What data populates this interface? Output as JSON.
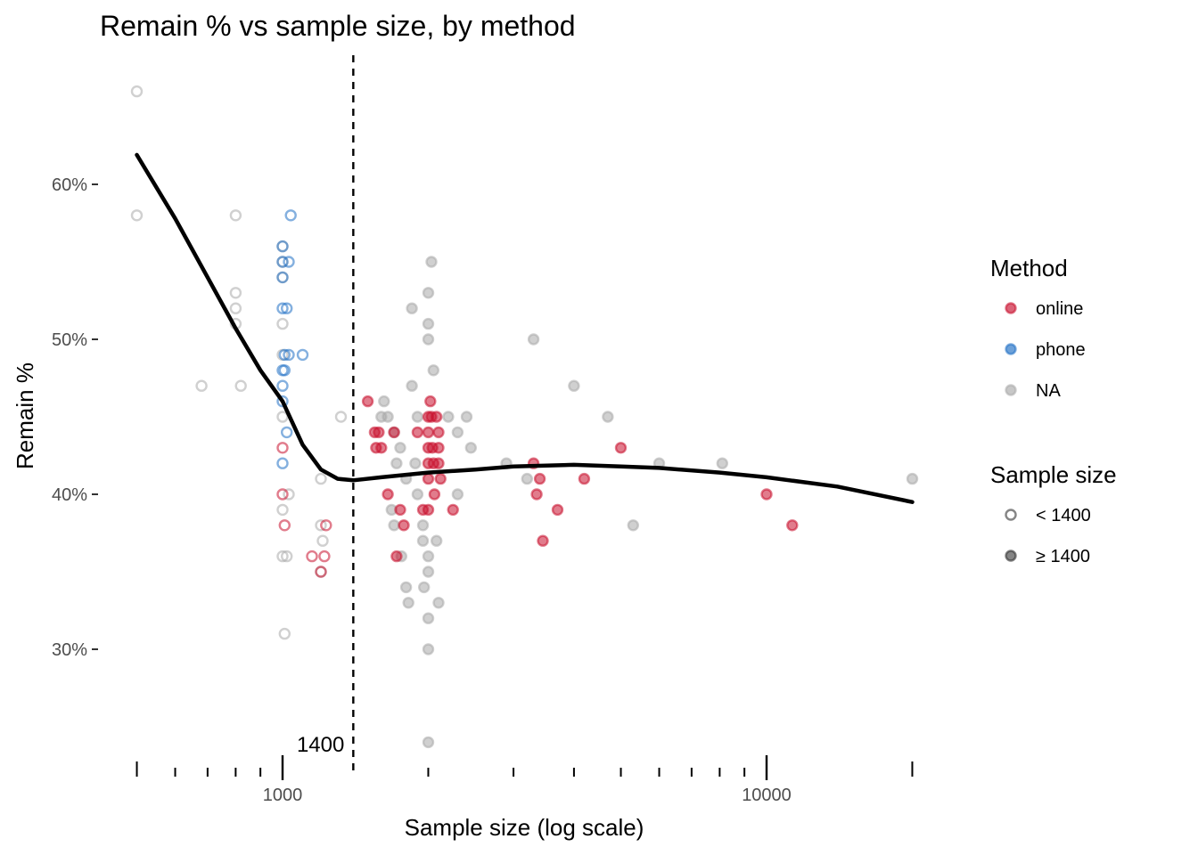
{
  "chart_data": {
    "type": "scatter",
    "title": "Remain % vs sample size, by method",
    "xlabel": "Sample size (log scale)",
    "ylabel": "Remain %",
    "x_scale": "log10",
    "xlim": [
      500,
      20000
    ],
    "ylim": [
      24,
      66
    ],
    "x_ticks_labeled": [
      {
        "value": 1000,
        "label": "1000"
      },
      {
        "value": 10000,
        "label": "10000"
      }
    ],
    "x_ticks_minor": [
      500,
      600,
      700,
      800,
      900,
      2000,
      3000,
      4000,
      5000,
      6000,
      7000,
      8000,
      9000,
      20000
    ],
    "y_ticks": [
      {
        "value": 30,
        "label": "30%"
      },
      {
        "value": 40,
        "label": "40%"
      },
      {
        "value": 50,
        "label": "50%"
      },
      {
        "value": 60,
        "label": "60%"
      }
    ],
    "grid": false,
    "colors": {
      "online": "#c8102e",
      "phone": "#1f6fc5",
      "NA": "#a9a9a9",
      "smooth": "#000000"
    },
    "reference_line": {
      "x": 1400,
      "style": "dashed",
      "label": "1400"
    },
    "smooth_curve": [
      [
        500,
        61.9
      ],
      [
        600,
        57.8
      ],
      [
        700,
        54.0
      ],
      [
        800,
        50.7
      ],
      [
        900,
        48.0
      ],
      [
        1000,
        46.0
      ],
      [
        1100,
        43.2
      ],
      [
        1200,
        41.6
      ],
      [
        1300,
        41.0
      ],
      [
        1400,
        40.9
      ],
      [
        1600,
        41.1
      ],
      [
        2000,
        41.4
      ],
      [
        2500,
        41.6
      ],
      [
        3000,
        41.8
      ],
      [
        4000,
        41.9
      ],
      [
        5000,
        41.8
      ],
      [
        6000,
        41.7
      ],
      [
        8000,
        41.4
      ],
      [
        10000,
        41.1
      ],
      [
        14000,
        40.5
      ],
      [
        20000,
        39.5
      ]
    ],
    "legend": {
      "placement": "right",
      "method": {
        "title": "Method",
        "items": [
          "online",
          "phone",
          "NA"
        ]
      },
      "size": {
        "title": "Sample size",
        "items": [
          "< 1400",
          "≥ 1400"
        ]
      }
    },
    "series": [
      {
        "name": "online",
        "points": [
          [
            1000,
            43
          ],
          [
            1000,
            40
          ],
          [
            1010,
            38
          ],
          [
            1150,
            36
          ],
          [
            1200,
            35
          ],
          [
            1220,
            36
          ],
          [
            1230,
            38
          ],
          [
            1500,
            46
          ],
          [
            1550,
            44
          ],
          [
            1560,
            43
          ],
          [
            1580,
            44
          ],
          [
            1600,
            43
          ],
          [
            1650,
            40
          ],
          [
            1700,
            44
          ],
          [
            1720,
            36
          ],
          [
            1750,
            39
          ],
          [
            1780,
            38
          ],
          [
            1900,
            44
          ],
          [
            1950,
            39
          ],
          [
            2000,
            45
          ],
          [
            2000,
            44
          ],
          [
            2000,
            43
          ],
          [
            2000,
            42
          ],
          [
            2000,
            41
          ],
          [
            2000,
            39
          ],
          [
            2020,
            46
          ],
          [
            2030,
            45
          ],
          [
            2040,
            43
          ],
          [
            2050,
            42
          ],
          [
            2060,
            40
          ],
          [
            2080,
            45
          ],
          [
            2100,
            44
          ],
          [
            2100,
            43
          ],
          [
            2100,
            42
          ],
          [
            2120,
            41
          ],
          [
            2250,
            39
          ],
          [
            3300,
            42
          ],
          [
            3400,
            41
          ],
          [
            3350,
            40
          ],
          [
            3450,
            37
          ],
          [
            3700,
            39
          ],
          [
            4200,
            41
          ],
          [
            5000,
            43
          ],
          [
            10000,
            40
          ],
          [
            11300,
            38
          ]
        ]
      },
      {
        "name": "phone",
        "points": [
          [
            1000,
            56
          ],
          [
            1000,
            55
          ],
          [
            1000,
            54
          ],
          [
            1000,
            52
          ],
          [
            1000,
            48
          ],
          [
            1000,
            47
          ],
          [
            1000,
            46
          ],
          [
            1000,
            42
          ],
          [
            1010,
            49
          ],
          [
            1010,
            48
          ],
          [
            1020,
            44
          ],
          [
            1020,
            52
          ],
          [
            1030,
            55
          ],
          [
            1030,
            49
          ],
          [
            1040,
            58
          ],
          [
            1100,
            49
          ]
        ]
      },
      {
        "name": "NA",
        "points": [
          [
            500,
            66
          ],
          [
            500,
            58
          ],
          [
            680,
            47
          ],
          [
            800,
            58
          ],
          [
            800,
            53
          ],
          [
            800,
            52
          ],
          [
            800,
            51
          ],
          [
            820,
            47
          ],
          [
            1000,
            56
          ],
          [
            1000,
            55
          ],
          [
            1000,
            54
          ],
          [
            1000,
            51
          ],
          [
            1000,
            49
          ],
          [
            1000,
            45
          ],
          [
            1000,
            39
          ],
          [
            1000,
            36
          ],
          [
            1010,
            31
          ],
          [
            1020,
            36
          ],
          [
            1030,
            40
          ],
          [
            1200,
            41
          ],
          [
            1200,
            38
          ],
          [
            1210,
            37
          ],
          [
            1200,
            35
          ],
          [
            1320,
            45
          ],
          [
            1620,
            46
          ],
          [
            1650,
            45
          ],
          [
            1700,
            44
          ],
          [
            1720,
            42
          ],
          [
            1750,
            43
          ],
          [
            1800,
            41
          ],
          [
            1600,
            45
          ],
          [
            1680,
            39
          ],
          [
            1700,
            38
          ],
          [
            1760,
            36
          ],
          [
            1800,
            34
          ],
          [
            1820,
            33
          ],
          [
            1850,
            47
          ],
          [
            1850,
            52
          ],
          [
            1880,
            42
          ],
          [
            1900,
            45
          ],
          [
            1900,
            40
          ],
          [
            1950,
            38
          ],
          [
            1950,
            37
          ],
          [
            1960,
            34
          ],
          [
            2000,
            53
          ],
          [
            2000,
            51
          ],
          [
            2000,
            50
          ],
          [
            2000,
            36
          ],
          [
            2000,
            35
          ],
          [
            2000,
            32
          ],
          [
            2000,
            30
          ],
          [
            2000,
            24
          ],
          [
            2030,
            55
          ],
          [
            2050,
            48
          ],
          [
            2080,
            37
          ],
          [
            2100,
            33
          ],
          [
            2200,
            45
          ],
          [
            2300,
            44
          ],
          [
            2300,
            40
          ],
          [
            2400,
            45
          ],
          [
            2450,
            43
          ],
          [
            2900,
            42
          ],
          [
            3200,
            41
          ],
          [
            3300,
            50
          ],
          [
            4000,
            47
          ],
          [
            4700,
            45
          ],
          [
            5300,
            38
          ],
          [
            6000,
            42
          ],
          [
            8100,
            42
          ],
          [
            20000,
            41
          ]
        ]
      }
    ]
  }
}
